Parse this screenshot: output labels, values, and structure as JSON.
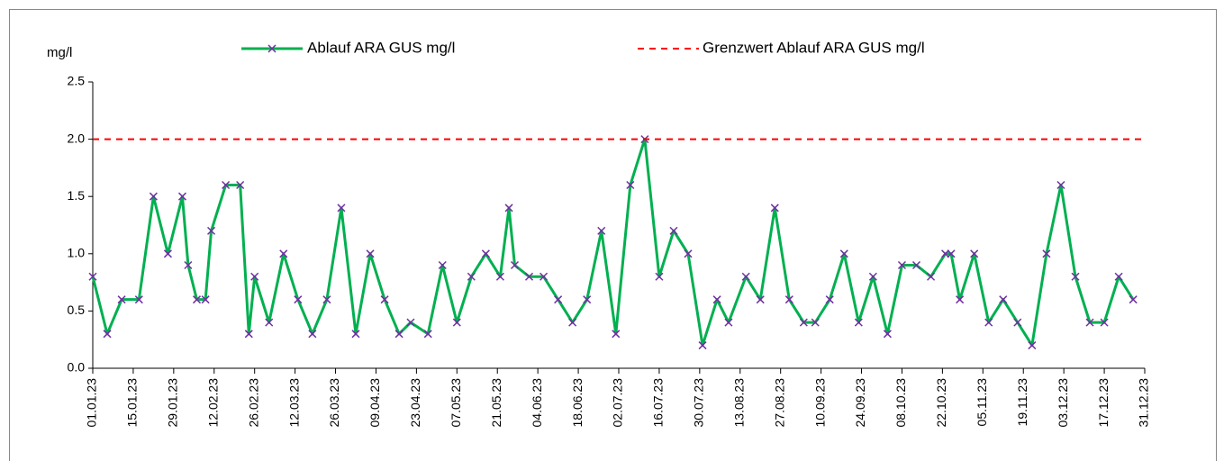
{
  "chart_data": {
    "type": "line",
    "y_label": "mg/l",
    "xlim": [
      "01.01.23",
      "31.12.23"
    ],
    "xticks": [
      "01.01.23",
      "15.01.23",
      "29.01.23",
      "12.02.23",
      "26.02.23",
      "12.03.23",
      "26.03.23",
      "09.04.23",
      "23.04.23",
      "07.05.23",
      "21.05.23",
      "04.06.23",
      "18.06.23",
      "02.07.23",
      "16.07.23",
      "30.07.23",
      "13.08.23",
      "27.08.23",
      "10.09.23",
      "24.09.23",
      "08.10.23",
      "22.10.23",
      "05.11.23",
      "19.11.23",
      "03.12.23",
      "17.12.23",
      "31.12.23"
    ],
    "ylim": [
      0,
      2.5
    ],
    "yticks": [
      {
        "value": 0,
        "label": "0.0"
      },
      0.5,
      {
        "value": 1,
        "label": "1.0"
      },
      1.5,
      {
        "value": 2,
        "label": "2.0"
      },
      2.5
    ],
    "legend": "top",
    "series": [
      {
        "name": "Ablauf ARA GUS mg/l",
        "color": "#00b050",
        "marker_color": "#7030a0",
        "x": [
          "01.01.23",
          "06.01.23",
          "11.01.23",
          "17.01.23",
          "22.01.23",
          "27.01.23",
          "01.02.23",
          "03.02.23",
          "06.02.23",
          "09.02.23",
          "11.02.23",
          "16.02.23",
          "21.02.23",
          "24.02.23",
          "26.02.23",
          "03.03.23",
          "08.03.23",
          "13.03.23",
          "18.03.23",
          "23.03.23",
          "28.03.23",
          "02.04.23",
          "07.04.23",
          "12.04.23",
          "17.04.23",
          "21.04.23",
          "27.04.23",
          "02.05.23",
          "07.05.23",
          "12.05.23",
          "17.05.23",
          "22.05.23",
          "25.05.23",
          "27.05.23",
          "01.06.23",
          "06.06.23",
          "11.06.23",
          "16.06.23",
          "21.06.23",
          "26.06.23",
          "01.07.23",
          "06.07.23",
          "11.07.23",
          "16.07.23",
          "21.07.23",
          "26.07.23",
          "31.07.23",
          "05.08.23",
          "09.08.23",
          "15.08.23",
          "20.08.23",
          "25.08.23",
          "30.08.23",
          "04.09.23",
          "08.09.23",
          "13.09.23",
          "18.09.23",
          "23.09.23",
          "28.09.23",
          "03.10.23",
          "08.10.23",
          "13.10.23",
          "18.10.23",
          "23.10.23",
          "25.10.23",
          "28.10.23",
          "02.11.23",
          "07.11.23",
          "12.11.23",
          "17.11.23",
          "22.11.23",
          "27.11.23",
          "02.12.23",
          "07.12.23",
          "12.12.23",
          "17.12.23",
          "22.12.23",
          "27.12.23"
        ],
        "values": [
          0.8,
          0.3,
          0.6,
          0.6,
          1.5,
          1.0,
          1.5,
          0.9,
          0.6,
          0.6,
          1.2,
          1.6,
          1.6,
          0.3,
          0.8,
          0.4,
          1.0,
          0.6,
          0.3,
          0.6,
          1.4,
          0.3,
          1.0,
          0.6,
          0.3,
          0.4,
          0.3,
          0.9,
          0.4,
          0.8,
          1.0,
          0.8,
          1.4,
          0.9,
          0.8,
          0.8,
          0.6,
          0.4,
          0.6,
          1.2,
          0.3,
          1.6,
          2.0,
          0.8,
          1.2,
          1.0,
          0.2,
          0.6,
          0.4,
          0.8,
          0.6,
          1.4,
          0.6,
          0.4,
          0.4,
          0.6,
          1.0,
          0.4,
          0.8,
          0.3,
          0.9,
          0.9,
          0.8,
          1.0,
          1.0,
          0.6,
          1.0,
          0.4,
          0.6,
          0.4,
          0.2,
          1.0,
          1.6,
          0.8,
          0.4,
          0.4,
          0.8,
          0.6
        ]
      },
      {
        "name": "Grenzwert Ablauf ARA GUS mg/l",
        "color": "#ff0000",
        "dashed": true,
        "x": [
          "01.01.23",
          "31.12.23"
        ],
        "values": [
          2.0,
          2.0
        ]
      }
    ]
  }
}
